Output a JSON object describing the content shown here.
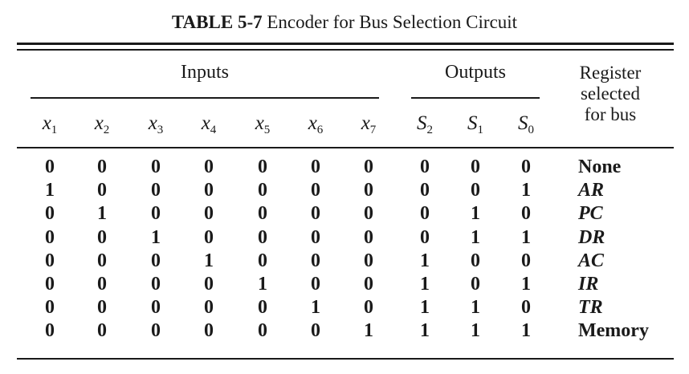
{
  "caption": {
    "label": "TABLE 5-7",
    "text": "Encoder for Bus Selection Circuit"
  },
  "groups": {
    "inputs": "Inputs",
    "outputs": "Outputs"
  },
  "register_header": [
    "Register",
    "selected",
    "for bus"
  ],
  "columns": [
    {
      "letter": "x",
      "sub": "1"
    },
    {
      "letter": "x",
      "sub": "2"
    },
    {
      "letter": "x",
      "sub": "3"
    },
    {
      "letter": "x",
      "sub": "4"
    },
    {
      "letter": "x",
      "sub": "5"
    },
    {
      "letter": "x",
      "sub": "6"
    },
    {
      "letter": "x",
      "sub": "7"
    },
    {
      "letter": "S",
      "sub": "2"
    },
    {
      "letter": "S",
      "sub": "1"
    },
    {
      "letter": "S",
      "sub": "0"
    }
  ],
  "rows": [
    {
      "values": [
        "0",
        "0",
        "0",
        "0",
        "0",
        "0",
        "0",
        "0",
        "0",
        "0"
      ],
      "register": "None",
      "italic": false
    },
    {
      "values": [
        "1",
        "0",
        "0",
        "0",
        "0",
        "0",
        "0",
        "0",
        "0",
        "1"
      ],
      "register": "AR",
      "italic": true
    },
    {
      "values": [
        "0",
        "1",
        "0",
        "0",
        "0",
        "0",
        "0",
        "0",
        "1",
        "0"
      ],
      "register": "PC",
      "italic": true
    },
    {
      "values": [
        "0",
        "0",
        "1",
        "0",
        "0",
        "0",
        "0",
        "0",
        "1",
        "1"
      ],
      "register": "DR",
      "italic": true
    },
    {
      "values": [
        "0",
        "0",
        "0",
        "1",
        "0",
        "0",
        "0",
        "1",
        "0",
        "0"
      ],
      "register": "AC",
      "italic": true
    },
    {
      "values": [
        "0",
        "0",
        "0",
        "0",
        "1",
        "0",
        "0",
        "1",
        "0",
        "1"
      ],
      "register": "IR",
      "italic": true
    },
    {
      "values": [
        "0",
        "0",
        "0",
        "0",
        "0",
        "1",
        "0",
        "1",
        "1",
        "0"
      ],
      "register": "TR",
      "italic": true
    },
    {
      "values": [
        "0",
        "0",
        "0",
        "0",
        "0",
        "0",
        "1",
        "1",
        "1",
        "1"
      ],
      "register": "Memory",
      "italic": false
    }
  ]
}
